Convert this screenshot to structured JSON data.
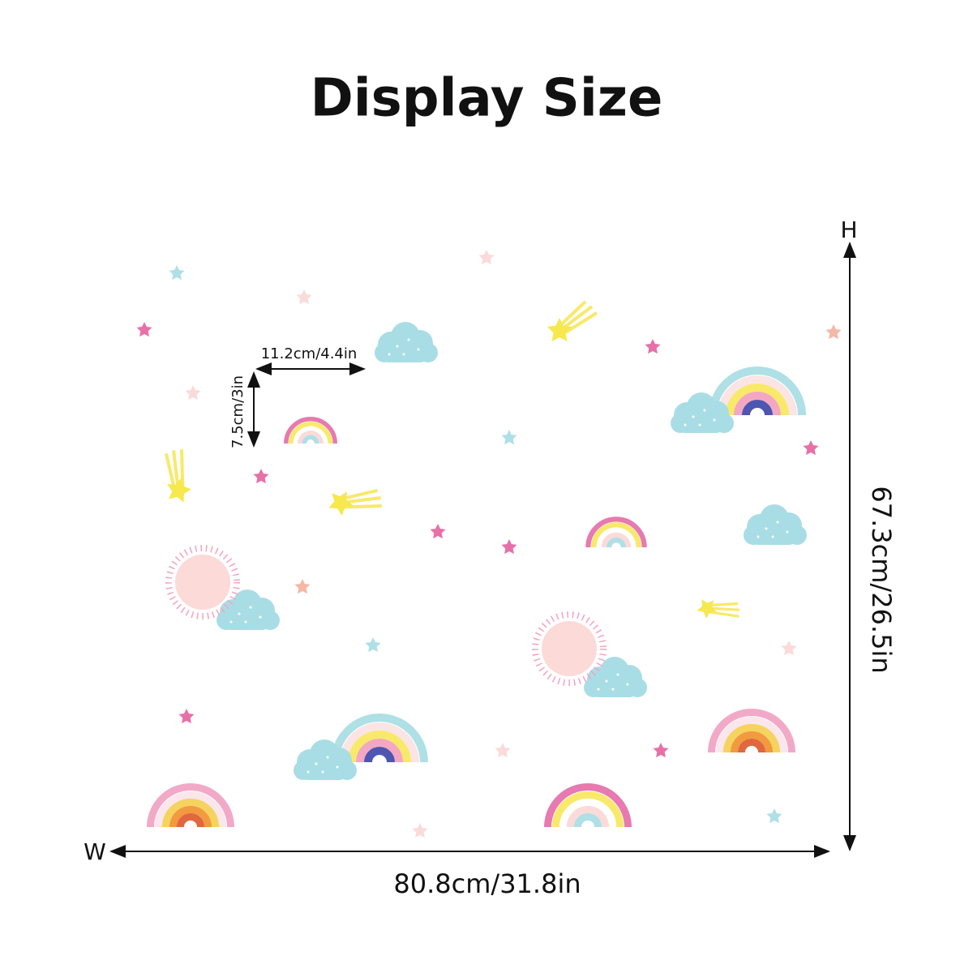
{
  "header": {
    "title": "Display Size"
  },
  "dimensions": {
    "height_marker": "H",
    "width_marker": "W",
    "width": "80.8cm/31.8in",
    "height": "67.3cm/26.5in",
    "item_width": "11.2cm/4.4in",
    "item_height": "7.5cm/3in"
  }
}
